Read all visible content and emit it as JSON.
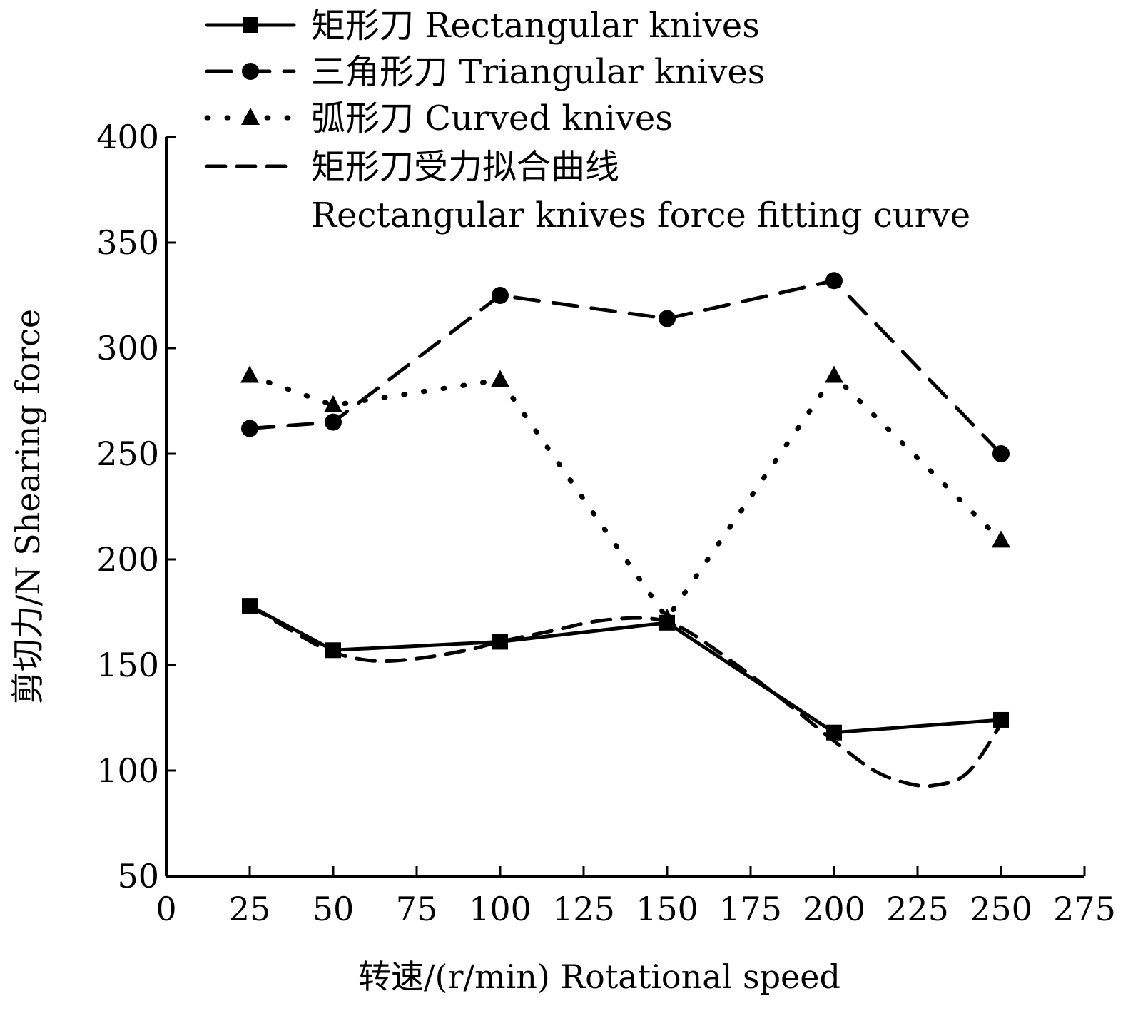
{
  "chart_data": {
    "type": "line",
    "title": "",
    "xlabel": "转速/(r/min)  Rotational speed",
    "ylabel": "剪切力/N  Shearing force",
    "xlim": [
      0,
      275
    ],
    "ylim": [
      50,
      400
    ],
    "xticks": [
      0,
      25,
      50,
      75,
      100,
      125,
      150,
      175,
      200,
      225,
      250,
      275
    ],
    "yticks": [
      50,
      100,
      150,
      200,
      250,
      300,
      350,
      400
    ],
    "grid": false,
    "legend_position": "top",
    "series": [
      {
        "name": "矩形刀   Rectangular knives",
        "style": "solid",
        "marker": "square",
        "x": [
          25,
          50,
          100,
          150,
          200,
          250
        ],
        "y": [
          178,
          157,
          161,
          170,
          118,
          124
        ]
      },
      {
        "name": "三角形刀   Triangular knives",
        "style": "longdash",
        "marker": "circle",
        "x": [
          25,
          50,
          100,
          150,
          200,
          250
        ],
        "y": [
          262,
          265,
          325,
          314,
          332,
          250
        ]
      },
      {
        "name": "弧形刀  Curved knives",
        "style": "dotted",
        "marker": "triangle",
        "x": [
          25,
          50,
          100,
          150,
          200,
          250
        ],
        "y": [
          287,
          273,
          285,
          172,
          287,
          209
        ]
      },
      {
        "name": "矩形刀受力拟合曲线",
        "name2": "Rectangular knives force fitting curve",
        "style": "dashed",
        "marker": "none",
        "x": [
          25,
          40,
          50,
          62,
          75,
          90,
          100,
          115,
          130,
          145,
          155,
          170,
          185,
          200,
          212,
          222,
          230,
          240,
          250
        ],
        "y": [
          178,
          164,
          156,
          152,
          153,
          157,
          161,
          166,
          171,
          172,
          167,
          151,
          133,
          114,
          100,
          94,
          93,
          99,
          122
        ]
      }
    ]
  }
}
